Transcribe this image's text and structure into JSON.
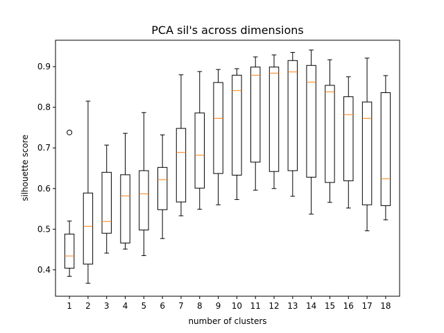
{
  "chart_data": {
    "type": "boxplot",
    "title": "PCA sil's across dimensions",
    "xlabel": "number of clusters",
    "ylabel": "silhouette score",
    "ylim": [
      0.335,
      0.965
    ],
    "yticks": [
      0.4,
      0.5,
      0.6,
      0.7,
      0.8,
      0.9
    ],
    "ytick_labels": [
      "0.4",
      "0.5",
      "0.6",
      "0.7",
      "0.8",
      "0.9"
    ],
    "grid": false,
    "colors": {
      "box": "#000000",
      "median": "#ff7f0e",
      "background": "#ffffff"
    },
    "boxes": [
      {
        "x": "1",
        "whislo": 0.384,
        "q1": 0.404,
        "med": 0.434,
        "q3": 0.488,
        "whishi": 0.52,
        "fliers": [
          0.738
        ]
      },
      {
        "x": "2",
        "whislo": 0.367,
        "q1": 0.414,
        "med": 0.507,
        "q3": 0.589,
        "whishi": 0.815,
        "fliers": []
      },
      {
        "x": "3",
        "whislo": 0.441,
        "q1": 0.49,
        "med": 0.519,
        "q3": 0.64,
        "whishi": 0.707,
        "fliers": []
      },
      {
        "x": "4",
        "whislo": 0.451,
        "q1": 0.466,
        "med": 0.582,
        "q3": 0.634,
        "whishi": 0.736,
        "fliers": []
      },
      {
        "x": "5",
        "whislo": 0.435,
        "q1": 0.498,
        "med": 0.587,
        "q3": 0.644,
        "whishi": 0.787,
        "fliers": []
      },
      {
        "x": "6",
        "whislo": 0.477,
        "q1": 0.548,
        "med": 0.622,
        "q3": 0.652,
        "whishi": 0.732,
        "fliers": []
      },
      {
        "x": "7",
        "whislo": 0.533,
        "q1": 0.567,
        "med": 0.689,
        "q3": 0.748,
        "whishi": 0.88,
        "fliers": []
      },
      {
        "x": "8",
        "whislo": 0.549,
        "q1": 0.601,
        "med": 0.682,
        "q3": 0.786,
        "whishi": 0.888,
        "fliers": []
      },
      {
        "x": "9",
        "whislo": 0.56,
        "q1": 0.637,
        "med": 0.773,
        "q3": 0.861,
        "whishi": 0.893,
        "fliers": []
      },
      {
        "x": "10",
        "whislo": 0.573,
        "q1": 0.633,
        "med": 0.841,
        "q3": 0.879,
        "whishi": 0.895,
        "fliers": []
      },
      {
        "x": "11",
        "whislo": 0.596,
        "q1": 0.665,
        "med": 0.879,
        "q3": 0.899,
        "whishi": 0.924,
        "fliers": []
      },
      {
        "x": "12",
        "whislo": 0.6,
        "q1": 0.642,
        "med": 0.884,
        "q3": 0.899,
        "whishi": 0.929,
        "fliers": []
      },
      {
        "x": "13",
        "whislo": 0.581,
        "q1": 0.644,
        "med": 0.887,
        "q3": 0.915,
        "whishi": 0.935,
        "fliers": []
      },
      {
        "x": "14",
        "whislo": 0.537,
        "q1": 0.628,
        "med": 0.862,
        "q3": 0.903,
        "whishi": 0.941,
        "fliers": []
      },
      {
        "x": "15",
        "whislo": 0.566,
        "q1": 0.615,
        "med": 0.838,
        "q3": 0.854,
        "whishi": 0.917,
        "fliers": []
      },
      {
        "x": "16",
        "whislo": 0.552,
        "q1": 0.619,
        "med": 0.782,
        "q3": 0.826,
        "whishi": 0.875,
        "fliers": []
      },
      {
        "x": "17",
        "whislo": 0.496,
        "q1": 0.56,
        "med": 0.773,
        "q3": 0.813,
        "whishi": 0.921,
        "fliers": []
      },
      {
        "x": "18",
        "whislo": 0.523,
        "q1": 0.558,
        "med": 0.624,
        "q3": 0.836,
        "whishi": 0.878,
        "fliers": []
      }
    ]
  }
}
